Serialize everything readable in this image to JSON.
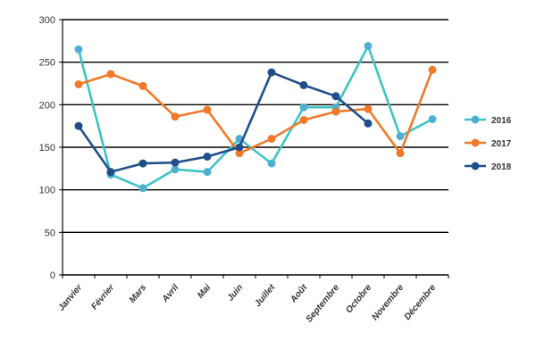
{
  "chart_data": {
    "type": "line",
    "categories": [
      "Janvier",
      "Février",
      "Mars",
      "Avril",
      "Mai",
      "Juin",
      "Juillet",
      "Août",
      "Septembre",
      "Octobre",
      "Novembre",
      "Décembre"
    ],
    "ylim": [
      0,
      300
    ],
    "yticks": [
      0,
      50,
      100,
      150,
      200,
      250,
      300
    ],
    "grid": true,
    "legend_position": "right",
    "series": [
      {
        "name": "2016",
        "color": "#3ec4c4",
        "marker_color": "#5aa6d6",
        "values": [
          265,
          118,
          102,
          124,
          121,
          160,
          131,
          197,
          197,
          269,
          163,
          183
        ]
      },
      {
        "name": "2017",
        "color": "#f07a2a",
        "marker_color": "#f07a2a",
        "values": [
          224,
          236,
          222,
          186,
          194,
          143,
          160,
          182,
          192,
          195,
          143,
          241
        ]
      },
      {
        "name": "2018",
        "color": "#1f4f8a",
        "marker_color": "#1f4f8a",
        "values": [
          175,
          121,
          131,
          132,
          139,
          150,
          238,
          223,
          210,
          178,
          null,
          null
        ]
      }
    ]
  }
}
